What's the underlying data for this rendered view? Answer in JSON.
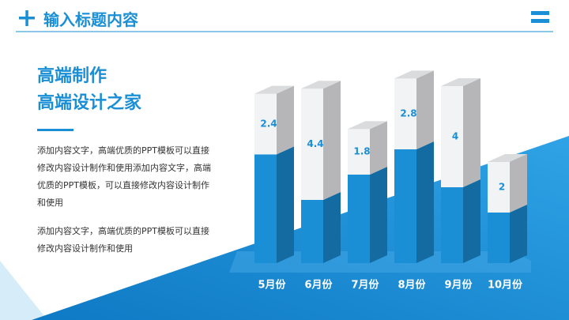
{
  "header": {
    "title": "输入标题内容"
  },
  "intro": {
    "heading": [
      "高端制作",
      "高端设计之家"
    ],
    "paragraphs": [
      "添加内容文字，高端优质的PPT模板可以直接修改内容设计制作和使用添加内容文字，高端优质的PPT模板，可以直接修改内容设计制作和使用",
      "添加内容文字，高端优质的PPT模板可以直接修改内容设计制作和使用"
    ]
  },
  "chart_data": {
    "type": "stacked_bar_3d",
    "categories": [
      "5月份",
      "6月份",
      "7月份",
      "8月份",
      "9月份",
      "10月份"
    ],
    "series": [
      {
        "color": "#1a8fd6",
        "values": [
          4.3,
          2.5,
          3.5,
          4.5,
          3.0,
          2.0
        ]
      },
      {
        "color": "#f2f3f5",
        "values": [
          2.4,
          4.4,
          1.8,
          2.8,
          4,
          2
        ]
      }
    ]
  }
}
